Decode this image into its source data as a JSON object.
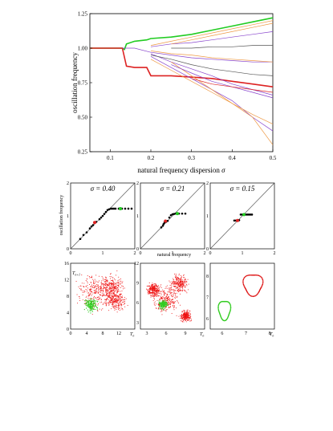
{
  "top_chart": {
    "chart_data": {
      "type": "line",
      "xlabel": "natural frequency dispersion",
      "xlabel_symbol": "σ",
      "ylabel": "oscillation frequency",
      "xlim": [
        0.05,
        0.5
      ],
      "ylim": [
        0.25,
        1.25
      ],
      "xticks": [
        "0.1",
        "0.2",
        "0.3",
        "0.4",
        "0.5"
      ],
      "xtick_values": [
        0.1,
        0.2,
        0.3,
        0.4,
        0.5
      ],
      "yticks": [
        "0.25",
        "0.50",
        "0.75",
        "1.00",
        "1.25"
      ],
      "ytick_values": [
        0.25,
        0.5,
        0.75,
        1.0,
        1.25
      ],
      "series": [
        {
          "color": "#22cc22",
          "x": [
            0.05,
            0.13,
            0.135,
            0.14,
            0.16,
            0.19,
            0.2,
            0.25,
            0.3,
            0.35,
            0.4,
            0.45,
            0.5
          ],
          "y": [
            1.0,
            1.0,
            0.99,
            1.03,
            1.05,
            1.06,
            1.07,
            1.08,
            1.1,
            1.13,
            1.16,
            1.19,
            1.22
          ]
        },
        {
          "color": "#dd2222",
          "x": [
            0.05,
            0.13,
            0.14,
            0.16,
            0.19,
            0.2,
            0.25,
            0.3,
            0.35,
            0.4,
            0.45,
            0.5
          ],
          "y": [
            1.0,
            1.0,
            0.87,
            0.86,
            0.86,
            0.8,
            0.8,
            0.79,
            0.78,
            0.76,
            0.74,
            0.72
          ]
        },
        {
          "color": "#8844cc",
          "x": [
            0.13,
            0.16,
            0.2,
            0.25,
            0.3,
            0.35,
            0.4,
            0.45,
            0.5
          ],
          "y": [
            1.0,
            1.0,
            0.97,
            0.95,
            0.93,
            0.92,
            0.91,
            0.9,
            0.9
          ]
        },
        {
          "color": "#8844cc",
          "x": [
            0.2,
            0.25,
            0.3,
            0.35,
            0.4,
            0.45,
            0.5
          ],
          "y": [
            0.96,
            0.9,
            0.85,
            0.8,
            0.74,
            0.7,
            0.66
          ]
        },
        {
          "color": "#8844cc",
          "x": [
            0.2,
            0.25,
            0.3,
            0.35,
            0.4,
            0.45,
            0.5
          ],
          "y": [
            1.01,
            1.03,
            1.04,
            1.06,
            1.08,
            1.1,
            1.12
          ]
        },
        {
          "color": "#8844cc",
          "x": [
            0.2,
            0.25,
            0.3,
            0.35,
            0.4,
            0.45,
            0.5
          ],
          "y": [
            0.94,
            0.86,
            0.78,
            0.7,
            0.62,
            0.5,
            0.4
          ]
        },
        {
          "color": "#555555",
          "x": [
            0.2,
            0.25,
            0.3,
            0.35,
            0.4,
            0.45,
            0.5
          ],
          "y": [
            0.95,
            0.92,
            0.88,
            0.85,
            0.83,
            0.81,
            0.8
          ]
        },
        {
          "color": "#555555",
          "x": [
            0.25,
            0.3,
            0.35,
            0.4,
            0.45,
            0.5
          ],
          "y": [
            1.0,
            1.0,
            1.01,
            1.01,
            1.02,
            1.02
          ]
        },
        {
          "color": "#ee9944",
          "x": [
            0.2,
            0.25,
            0.3,
            0.35,
            0.4,
            0.45,
            0.5
          ],
          "y": [
            1.02,
            1.05,
            1.08,
            1.11,
            1.14,
            1.17,
            1.2
          ]
        },
        {
          "color": "#ee9944",
          "x": [
            0.2,
            0.25,
            0.3,
            0.35,
            0.4,
            0.45,
            0.5
          ],
          "y": [
            0.98,
            0.96,
            0.95,
            0.93,
            0.92,
            0.91,
            0.9
          ]
        },
        {
          "color": "#ee9944",
          "x": [
            0.2,
            0.25,
            0.3,
            0.35,
            0.4,
            0.45,
            0.5
          ],
          "y": [
            0.92,
            0.84,
            0.76,
            0.68,
            0.6,
            0.52,
            0.45
          ]
        },
        {
          "color": "#ee9944",
          "x": [
            0.25,
            0.3,
            0.35,
            0.4,
            0.45,
            0.5
          ],
          "y": [
            0.9,
            0.8,
            0.7,
            0.6,
            0.5,
            0.3
          ]
        },
        {
          "color": "#ee9944",
          "x": [
            0.25,
            0.3,
            0.35,
            0.4,
            0.45,
            0.5
          ],
          "y": [
            1.03,
            1.06,
            1.09,
            1.12,
            1.15,
            1.18
          ]
        },
        {
          "color": "#8844cc",
          "x": [
            0.25,
            0.3,
            0.35,
            0.4,
            0.45,
            0.5
          ],
          "y": [
            0.88,
            0.82,
            0.76,
            0.72,
            0.68,
            0.64
          ]
        },
        {
          "color": "#dd2222",
          "x": [
            0.3,
            0.35,
            0.4,
            0.45,
            0.5
          ],
          "y": [
            0.78,
            0.74,
            0.72,
            0.7,
            0.68
          ]
        }
      ]
    }
  },
  "middle_charts": {
    "ylabel": "oscillation frequency",
    "xlabel": "natural frequency",
    "panels": [
      {
        "sigma_label": "σ = 0.40",
        "xticks": [
          "0",
          "1",
          "2"
        ],
        "yticks": [
          "0",
          "1",
          "2"
        ],
        "xlim": [
          0,
          2
        ],
        "ylim": [
          0,
          2
        ],
        "chart_data": {
          "type": "scatter",
          "black_x": [
            0.3,
            0.4,
            0.5,
            0.6,
            0.65,
            0.7,
            0.8,
            0.9,
            0.95,
            1.0,
            1.05,
            1.1,
            1.15,
            1.2,
            1.25,
            1.3,
            1.35,
            1.4,
            1.5,
            1.6,
            1.7,
            1.8,
            1.9
          ],
          "black_y": [
            0.3,
            0.42,
            0.5,
            0.62,
            0.68,
            0.72,
            0.82,
            0.9,
            0.95,
            1.0,
            1.06,
            1.12,
            1.18,
            1.2,
            1.22,
            1.22,
            1.22,
            1.22,
            1.22,
            1.22,
            1.22,
            1.22,
            1.22
          ],
          "red_x": [
            0.75
          ],
          "red_y": [
            0.8
          ],
          "green_x": [
            1.55
          ],
          "green_y": [
            1.22
          ]
        }
      },
      {
        "sigma_label": "σ = 0.21",
        "xticks": [
          "0",
          "1",
          "2"
        ],
        "yticks": [
          "0",
          "1",
          "2"
        ],
        "xlim": [
          0,
          2
        ],
        "ylim": [
          0,
          2
        ],
        "chart_data": {
          "type": "scatter",
          "black_x": [
            0.65,
            0.7,
            0.72,
            0.75,
            0.8,
            0.85,
            0.9,
            0.95,
            1.0,
            1.05,
            1.1,
            1.2,
            1.3,
            1.4
          ],
          "black_y": [
            0.65,
            0.7,
            0.75,
            0.8,
            0.82,
            0.85,
            0.95,
            1.02,
            1.05,
            1.06,
            1.07,
            1.07,
            1.07,
            1.07
          ],
          "red_x": [
            0.78
          ],
          "red_y": [
            0.84
          ],
          "green_x": [
            1.15
          ],
          "green_y": [
            1.07
          ]
        }
      },
      {
        "sigma_label": "σ = 0.15",
        "xticks": [
          "0",
          "1",
          "2"
        ],
        "yticks": [
          "0",
          "1",
          "2"
        ],
        "xlim": [
          0,
          2
        ],
        "ylim": [
          0,
          2
        ],
        "chart_data": {
          "type": "scatter",
          "black_x": [
            0.75,
            0.8,
            0.85,
            0.9,
            0.95,
            1.0,
            1.05,
            1.1,
            1.15,
            1.2,
            1.25,
            1.3
          ],
          "black_y": [
            0.86,
            0.86,
            0.86,
            0.87,
            1.04,
            1.04,
            1.04,
            1.04,
            1.04,
            1.04,
            1.04,
            1.04
          ],
          "red_x": [
            0.85
          ],
          "red_y": [
            0.86
          ],
          "green_x": [
            1.05
          ],
          "green_y": [
            1.04
          ]
        }
      }
    ]
  },
  "bottom_charts": {
    "panels": [
      {
        "ylabel": "T",
        "ylabel_sub": "n+1",
        "xlabel": "T",
        "xlabel_sub": "n",
        "xticks": [
          "0",
          "4",
          "8",
          "12"
        ],
        "yticks": [
          "0",
          "4",
          "8",
          "12",
          "16"
        ],
        "xlim": [
          0,
          16
        ],
        "ylim": [
          0,
          16
        ],
        "chart_data": {
          "type": "scatter",
          "red_clouds": [
            [
              6,
              9,
              3
            ],
            [
              10,
              10.5,
              2.2
            ],
            [
              11,
              7,
              2
            ]
          ],
          "green_clouds": [
            [
              5,
              6,
              1.2
            ]
          ]
        }
      },
      {
        "xlabel": "T",
        "xlabel_sub": "n",
        "xticks": [
          "3",
          "6",
          "9"
        ],
        "yticks": [
          "3",
          "6",
          "9",
          "12"
        ],
        "xlim": [
          2,
          12
        ],
        "ylim": [
          2,
          12
        ],
        "chart_data": {
          "type": "scatter",
          "red_clouds": [
            [
              6,
              6.5,
              1.5
            ],
            [
              8,
              9,
              1
            ],
            [
              4,
              8,
              0.8
            ],
            [
              9,
              4,
              0.6
            ]
          ],
          "green_clouds": [
            [
              5.5,
              5.8,
              0.5
            ]
          ]
        }
      },
      {
        "xlabel": "T",
        "xlabel_sub": "n",
        "xticks": [
          "6",
          "7",
          "8"
        ],
        "yticks": [
          "6",
          "7",
          "8"
        ],
        "xlim": [
          5.5,
          8.2
        ],
        "ylim": [
          5.5,
          8.6
        ],
        "chart_data": {
          "type": "scatter",
          "red_loop": {
            "cx": 7.3,
            "cy": 7.6,
            "rx": 0.4,
            "ry": 0.5
          },
          "green_loop": {
            "cx": 6.1,
            "cy": 6.4,
            "rx": 0.25,
            "ry": 0.45
          }
        }
      }
    ]
  }
}
